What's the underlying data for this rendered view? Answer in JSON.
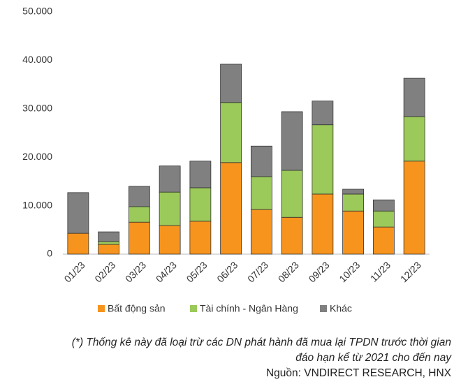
{
  "chart_data": {
    "type": "stacked_bar",
    "categories": [
      "01/23",
      "02/23",
      "03/23",
      "04/23",
      "05/23",
      "06/23",
      "07/23",
      "08/23",
      "09/23",
      "10/23",
      "11/23",
      "12/23"
    ],
    "series": [
      {
        "name": "Bất động sản",
        "color": "#f7941d",
        "values": [
          4300,
          2000,
          6600,
          5900,
          6800,
          18900,
          9200,
          7600,
          12400,
          8900,
          5600,
          19200
        ]
      },
      {
        "name": "Tài chính - Ngân Hàng",
        "color": "#9bc95a",
        "values": [
          0,
          600,
          3200,
          6900,
          6900,
          12400,
          6800,
          9700,
          14300,
          3500,
          3300,
          9200
        ]
      },
      {
        "name": "Khác",
        "color": "#808080",
        "values": [
          8400,
          2000,
          4200,
          5400,
          5500,
          7900,
          6300,
          12100,
          4900,
          1000,
          2300,
          7900
        ]
      }
    ],
    "ylim": [
      0,
      50000
    ],
    "yticks": [
      0,
      {
        "value": 10000,
        "label": "10.000"
      },
      {
        "value": 20000,
        "label": "20.000"
      },
      {
        "value": 30000,
        "label": "30.000"
      },
      {
        "value": 40000,
        "label": "40.000"
      },
      {
        "value": 50000,
        "label": "50.000"
      }
    ],
    "grid": false,
    "notes": [
      "(*) Thống kê này đã loại trừ các DN phát hành đã mua lại TPDN trước thời gian",
      "đáo hạn kể từ 2021 cho đến nay"
    ],
    "source": "Nguồn: VNDIRECT RESEARCH, HNX"
  }
}
